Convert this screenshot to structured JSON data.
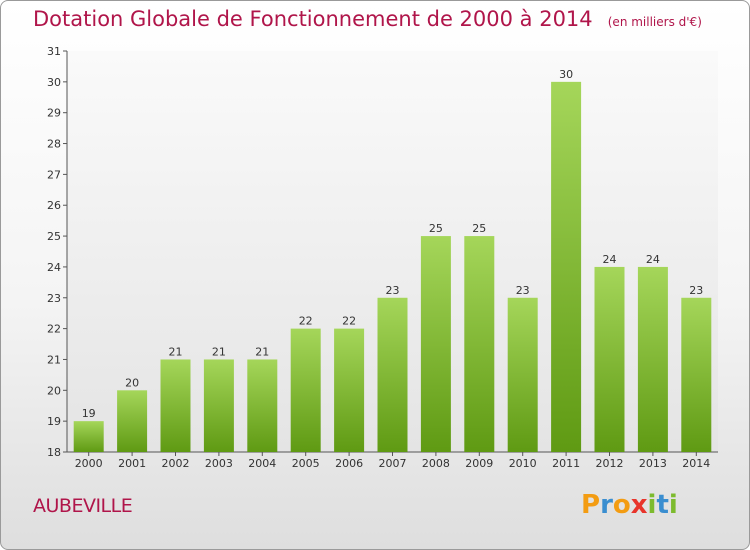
{
  "title": "Dotation Globale de Fonctionnement de 2000 à 2014",
  "subtitle": "(en milliers d'€)",
  "town": "AUBEVILLE",
  "logo": {
    "text": "Proxiti",
    "letters": [
      {
        "char": "P",
        "color": "#f39c12"
      },
      {
        "char": "r",
        "color": "#3a8ed0"
      },
      {
        "char": "o",
        "color": "#f39c12"
      },
      {
        "char": "x",
        "color": "#e8342b"
      },
      {
        "char": "i",
        "color": "#7dbb2e"
      },
      {
        "char": "t",
        "color": "#3a8ed0"
      },
      {
        "char": "i",
        "color": "#7dbb2e"
      }
    ]
  },
  "colors": {
    "accent": "#b0154a",
    "bar_top": "#a5d65a",
    "bar_bottom": "#5f9a13",
    "plot_bg_top": "#fafafa",
    "plot_bg_bottom": "#e4e4e4"
  },
  "chart_data": {
    "type": "bar",
    "title": "Dotation Globale de Fonctionnement de 2000 à 2014",
    "subtitle": "(en milliers d'€)",
    "xlabel": "",
    "ylabel": "",
    "categories": [
      "2000",
      "2001",
      "2002",
      "2003",
      "2004",
      "2005",
      "2006",
      "2007",
      "2008",
      "2009",
      "2010",
      "2011",
      "2012",
      "2013",
      "2014"
    ],
    "values": [
      19,
      20,
      21,
      21,
      21,
      22,
      22,
      23,
      25,
      25,
      23,
      30,
      24,
      24,
      23
    ],
    "ylim": [
      18,
      31
    ],
    "yticks": [
      18,
      19,
      20,
      21,
      22,
      23,
      24,
      25,
      26,
      27,
      28,
      29,
      30,
      31
    ],
    "grid": false,
    "data_labels": true
  }
}
